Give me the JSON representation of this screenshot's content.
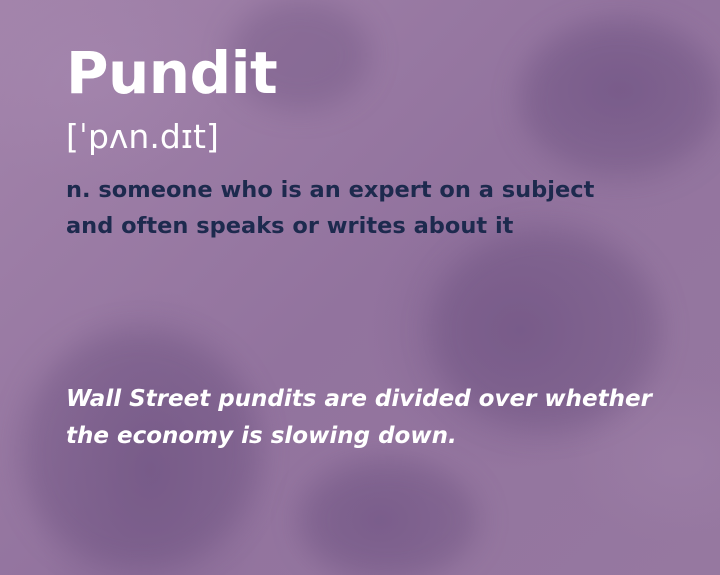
{
  "entry": {
    "word": "Pundit",
    "pronunciation": "[ˈpʌn.dɪt]",
    "definition": "n. someone who is an expert on a subject and often speaks or writes about it",
    "example": "Wall Street pundits are divided over whether the economy is slowing down."
  },
  "colors": {
    "background": "#9a7aa4",
    "word": "#ffffff",
    "definition": "#1d2a4e",
    "example": "#ffffff"
  }
}
